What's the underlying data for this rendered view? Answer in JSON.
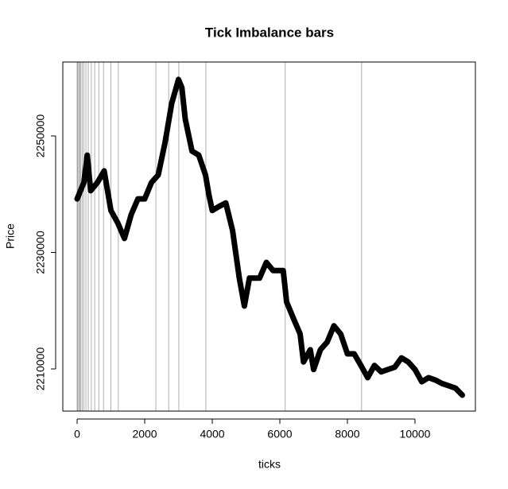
{
  "chart_data": {
    "type": "line",
    "title": "Tick Imbalance bars",
    "x_label": "ticks",
    "y_label": "Price",
    "x": [
      0,
      200,
      300,
      400,
      600,
      800,
      1000,
      1200,
      1400,
      1600,
      1800,
      2000,
      2200,
      2400,
      2600,
      2800,
      3000,
      3100,
      3200,
      3400,
      3600,
      3800,
      3900,
      4000,
      4200,
      4400,
      4600,
      4800,
      4950,
      5100,
      5400,
      5600,
      5800,
      6000,
      6100,
      6200,
      6400,
      6600,
      6700,
      6900,
      7000,
      7200,
      7400,
      7600,
      7800,
      8000,
      8200,
      8400,
      8600,
      8800,
      9000,
      9200,
      9400,
      9600,
      9800,
      10000,
      10200,
      10400,
      10600,
      10800,
      11000,
      11200,
      11400
    ],
    "values": [
      2239200,
      2242000,
      2246700,
      2240600,
      2242000,
      2244000,
      2237200,
      2235100,
      2232400,
      2236500,
      2239200,
      2239200,
      2242000,
      2243300,
      2248800,
      2255600,
      2259700,
      2258300,
      2252900,
      2247400,
      2246700,
      2243300,
      2239900,
      2237200,
      2237900,
      2238500,
      2233800,
      2225600,
      2220800,
      2225600,
      2225600,
      2228300,
      2226900,
      2226900,
      2226900,
      2221500,
      2218700,
      2216000,
      2211200,
      2213300,
      2209900,
      2213300,
      2214600,
      2217400,
      2216000,
      2212600,
      2212600,
      2210600,
      2208500,
      2210600,
      2209500,
      2209900,
      2210300,
      2211900,
      2211200,
      2209900,
      2207800,
      2208500,
      2208100,
      2207500,
      2207100,
      2206700,
      2205500
    ],
    "color": "#000000",
    "vlines": [
      0,
      20,
      50,
      80,
      110,
      150,
      200,
      260,
      330,
      420,
      520,
      640,
      780,
      1000,
      1220,
      2330,
      2710,
      3010,
      3810,
      6160,
      8420
    ],
    "vline_color": "#9a9a9a",
    "xlim": [
      -424,
      11788
    ],
    "xticks": [
      0,
      2000,
      4000,
      6000,
      8000,
      10000
    ],
    "ylim": [
      2202765,
      2262695
    ],
    "yticks": [
      2210000,
      2230000,
      2250000
    ]
  }
}
